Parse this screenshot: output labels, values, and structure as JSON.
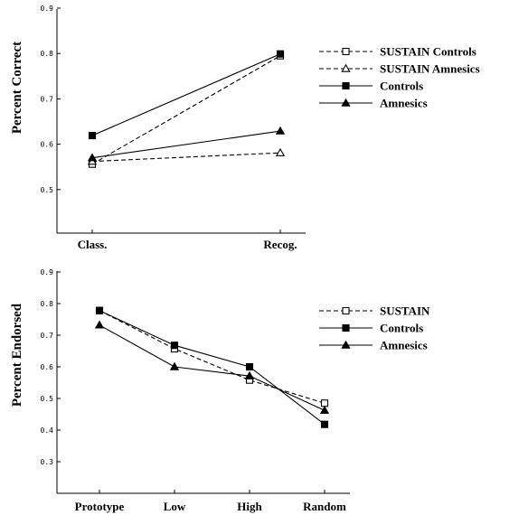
{
  "chart_data": [
    {
      "type": "line",
      "title": "",
      "xlabel": "",
      "ylabel": "Percent Correct",
      "categories": [
        "Class.",
        "Recog."
      ],
      "ylim": [
        0.4,
        0.9
      ],
      "yticks": [
        "0.5",
        "0.6",
        "0.7",
        "0.8",
        "0.9"
      ],
      "legend_position": "right",
      "series": [
        {
          "name": "SUSTAIN Controls",
          "values": [
            0.556,
            0.795
          ],
          "marker": "open-square",
          "dashed": true
        },
        {
          "name": "SUSTAIN Amnesics",
          "values": [
            0.562,
            0.581
          ],
          "marker": "open-triangle",
          "dashed": true
        },
        {
          "name": "Controls",
          "values": [
            0.619,
            0.799
          ],
          "marker": "filled-square",
          "dashed": false
        },
        {
          "name": "Amnesics",
          "values": [
            0.57,
            0.629
          ],
          "marker": "filled-triangle",
          "dashed": false
        }
      ]
    },
    {
      "type": "line",
      "title": "",
      "xlabel": "",
      "ylabel": "Percent Endorsed",
      "categories": [
        "Prototype",
        "Low",
        "High",
        "Random"
      ],
      "ylim": [
        0.2,
        0.9
      ],
      "yticks": [
        "0.3",
        "0.4",
        "0.5",
        "0.6",
        "0.7",
        "0.8",
        "0.9"
      ],
      "legend_position": "right",
      "series": [
        {
          "name": "SUSTAIN",
          "values": [
            0.778,
            0.657,
            0.558,
            0.485
          ],
          "marker": "open-square",
          "dashed": true
        },
        {
          "name": "Controls",
          "values": [
            0.778,
            0.668,
            0.6,
            0.418
          ],
          "marker": "filled-square",
          "dashed": false
        },
        {
          "name": "Amnesics",
          "values": [
            0.732,
            0.6,
            0.571,
            0.462
          ],
          "marker": "filled-triangle",
          "dashed": false
        }
      ]
    }
  ]
}
